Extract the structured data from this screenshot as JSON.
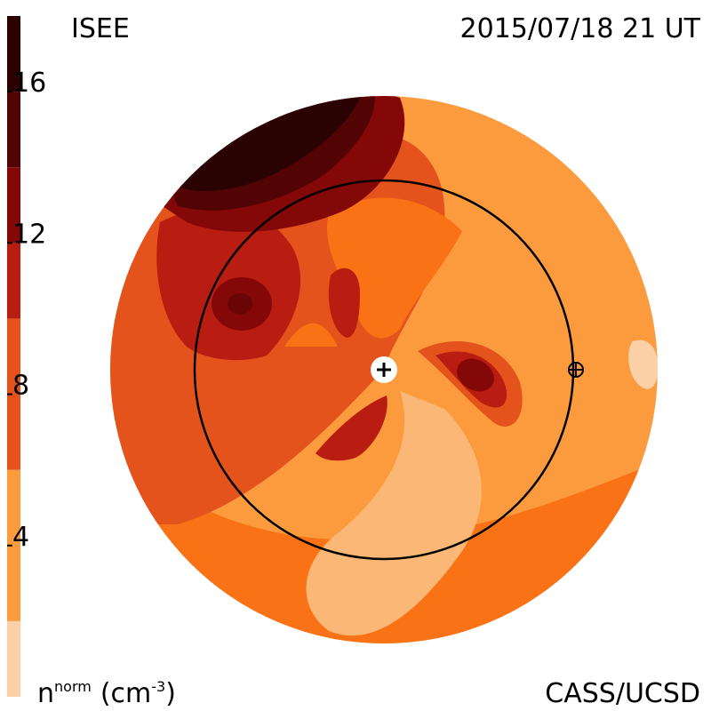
{
  "header": {
    "source": "ISEE",
    "timestamp": "2015/07/18 21 UT"
  },
  "footer": {
    "quantity_base": "n",
    "quantity_sup": "norm",
    "unit_open": "(cm",
    "unit_sup": "-3",
    "unit_close": ")",
    "credit": "CASS/UCSD"
  },
  "chart_data": {
    "type": "heatmap",
    "title": "",
    "colorbar": {
      "min": 0,
      "max": 18,
      "tick_labels": [
        "16",
        "12",
        "8",
        "4"
      ],
      "ticks": [
        16,
        12,
        8,
        4
      ],
      "bands": [
        {
          "from": 0,
          "to": 2,
          "color": "#FBD0A6"
        },
        {
          "from": 2,
          "to": 6,
          "color": "#FB9B3E"
        },
        {
          "from": 6,
          "to": 10,
          "color": "#E4531C"
        },
        {
          "from": 10,
          "to": 12,
          "color": "#B91C10"
        },
        {
          "from": 12,
          "to": 14,
          "color": "#850808"
        },
        {
          "from": 14,
          "to": 16,
          "color": "#520404"
        },
        {
          "from": 16,
          "to": 18,
          "color": "#2A0202"
        }
      ]
    },
    "markers": [
      {
        "name": "sun",
        "symbol": "plus-in-circle"
      },
      {
        "name": "earth",
        "symbol": "circled-plus"
      }
    ],
    "reference_circle": "earth-orbit"
  },
  "colors": {
    "background": "#ffffff",
    "ink": "#000000"
  }
}
